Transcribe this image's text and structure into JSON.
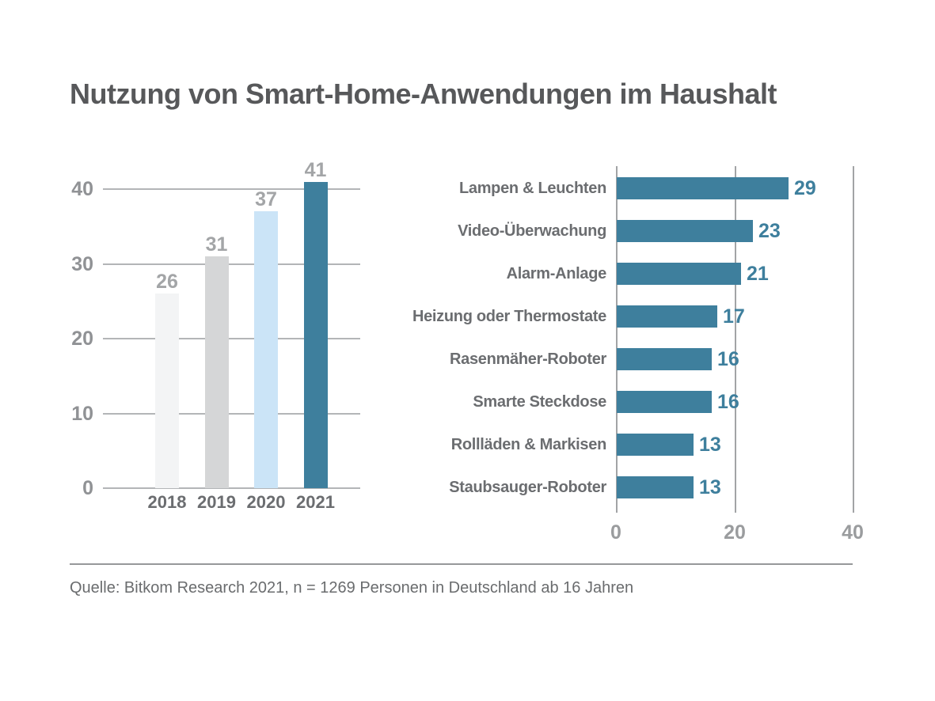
{
  "page": {
    "title": "Nutzung von Smart-Home-Anwendungen im Haushalt",
    "source_note": "Quelle: Bitkom Research 2021, n = 1269 Personen in Deutschland ab 16 Jahren"
  },
  "colors": {
    "accent_teal": "#3e7f9d",
    "light_blue_bar": "#cbe4f7",
    "mid_gray_bar": "#d5d6d7",
    "light_gray_bar": "#f3f4f5"
  },
  "chart_data": [
    {
      "type": "bar",
      "orientation": "vertical",
      "title": "",
      "xlabel": "",
      "ylabel": "",
      "categories": [
        "2018",
        "2019",
        "2020",
        "2021"
      ],
      "values": [
        26,
        31,
        37,
        41
      ],
      "bar_colors": [
        "#f3f4f5",
        "#d5d6d7",
        "#cbe4f7",
        "#3e7f9d"
      ],
      "ylim": [
        0,
        40
      ],
      "yticks": [
        0,
        10,
        20,
        30,
        40
      ],
      "grid": "horizontal",
      "value_labels_shown": true,
      "legend": "none"
    },
    {
      "type": "bar",
      "orientation": "horizontal",
      "title": "",
      "xlabel": "",
      "ylabel": "",
      "categories": [
        "Lampen & Leuchten",
        "Video-Überwachung",
        "Alarm-Anlage",
        "Heizung oder Thermostate",
        "Rasenmäher-Roboter",
        "Smarte Steckdose",
        "Rollläden & Markisen",
        "Staubsauger-Roboter"
      ],
      "values": [
        29,
        23,
        21,
        17,
        16,
        16,
        13,
        13
      ],
      "bar_color": "#3e7f9d",
      "value_label_color": "#3e7f9d",
      "xlim": [
        0,
        40
      ],
      "xticks": [
        0,
        20,
        40
      ],
      "grid": "vertical",
      "value_labels_shown": true,
      "legend": "none"
    }
  ]
}
